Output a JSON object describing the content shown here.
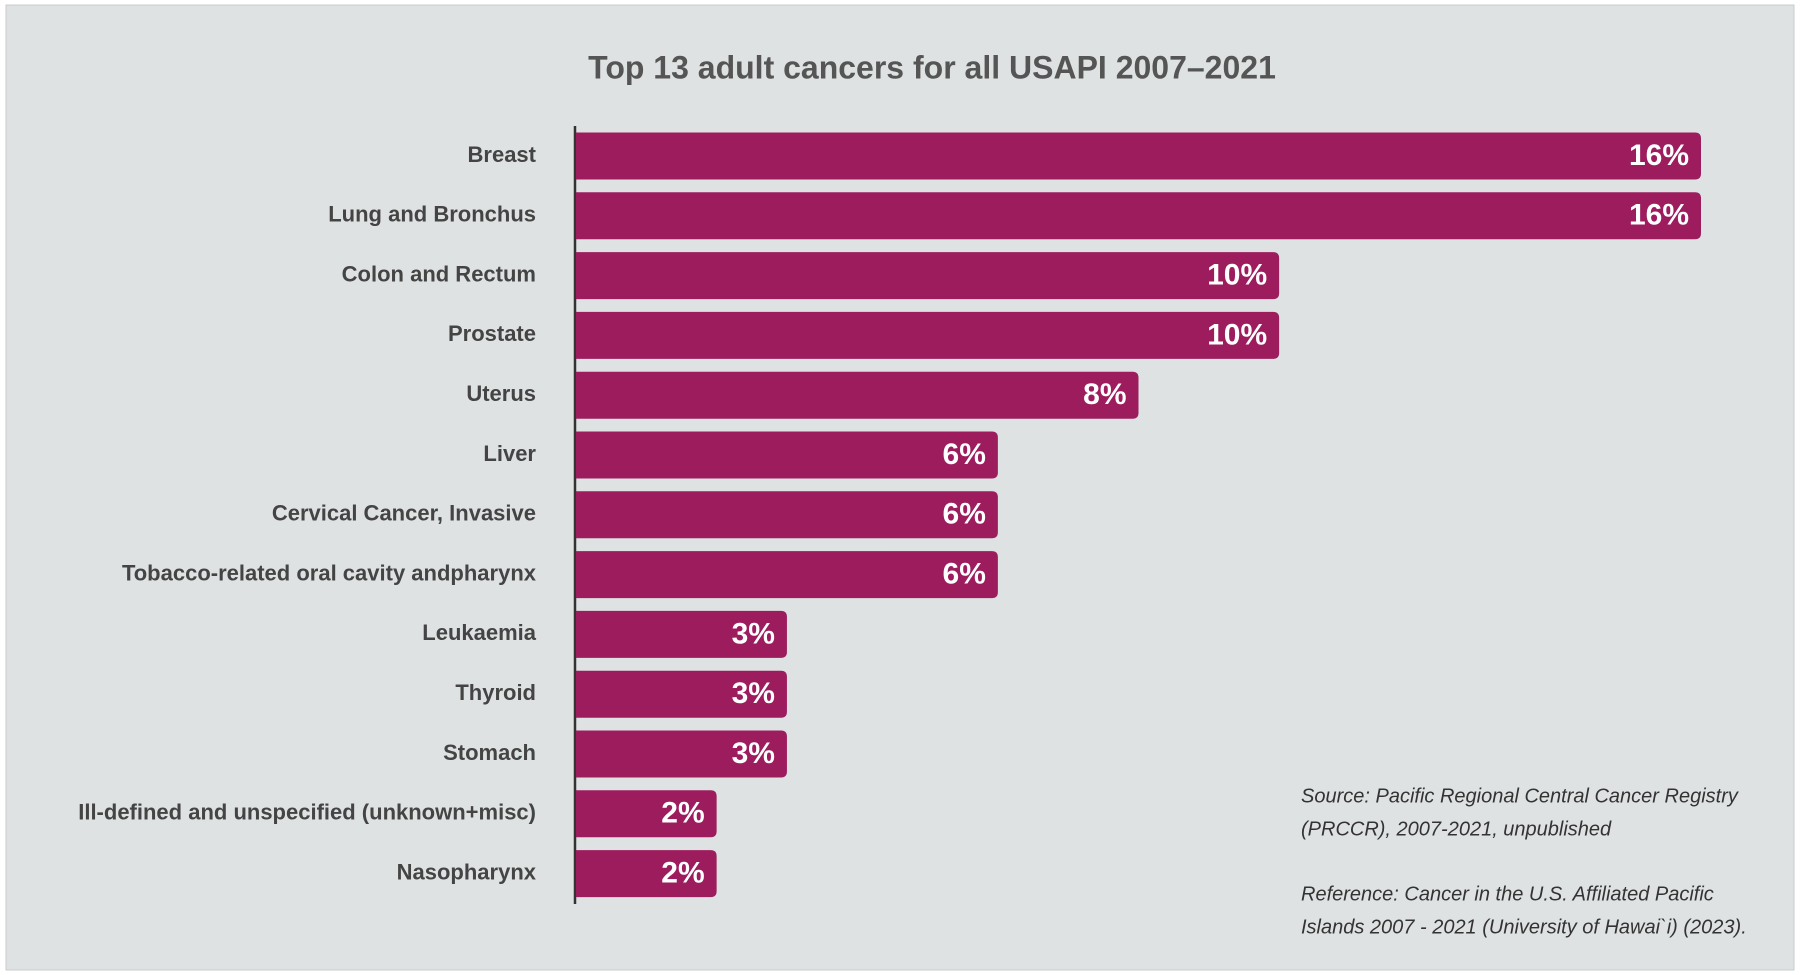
{
  "chart_data": {
    "type": "bar",
    "orientation": "horizontal",
    "title": "Top 13 adult cancers for all USAPI 2007–2021",
    "categories": [
      "Breast",
      "Lung and Bronchus",
      "Colon and Rectum",
      "Prostate",
      "Uterus",
      "Liver",
      "Cervical Cancer, Invasive",
      "Tobacco-related oral cavity andpharynx",
      "Leukaemia",
      "Thyroid",
      "Stomach",
      "Ill-defined and unspecified (unknown+misc)",
      "Nasopharynx"
    ],
    "values": [
      16,
      16,
      10,
      10,
      8,
      6,
      6,
      6,
      3,
      3,
      3,
      2,
      2
    ],
    "value_labels": [
      "16%",
      "16%",
      "10%",
      "10%",
      "8%",
      "6%",
      "6%",
      "6%",
      "3%",
      "3%",
      "3%",
      "2%",
      "2%"
    ],
    "color": "#9c1c5e",
    "notes": [
      "Source: Pacific Regional Central Cancer Registry",
      "(PRCCR), 2007-2021, unpublished",
      "Reference: Cancer in the U.S. Affiliated Pacific",
      "Islands 2007 - 2021 (University of Hawai`i) (2023)."
    ]
  }
}
